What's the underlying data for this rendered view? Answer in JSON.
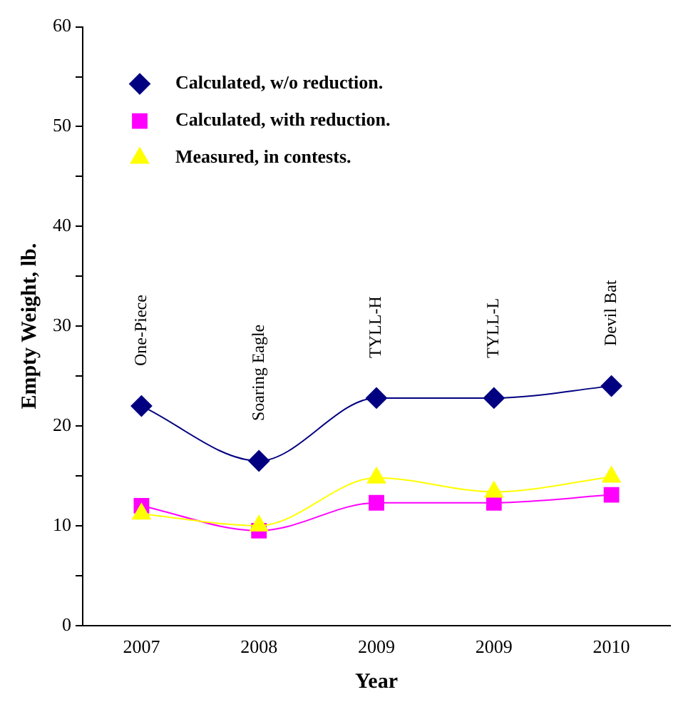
{
  "chart_data": {
    "type": "line",
    "xlabel": "Year",
    "ylabel": "Empty Weight, lb.",
    "categories": [
      "2007",
      "2008",
      "2009",
      "2009",
      "2010"
    ],
    "series": [
      {
        "name": "Calculated, w/o reduction.",
        "color": "#000080",
        "marker": "diamond",
        "values": [
          22,
          16.5,
          22.8,
          22.8,
          24
        ]
      },
      {
        "name": "Calculated, with reduction.",
        "color": "#ff00ff",
        "marker": "square",
        "values": [
          12,
          9.5,
          12.3,
          12.3,
          13.1
        ]
      },
      {
        "name": "Measured, in contests.",
        "color": "#ffff00",
        "marker": "triangle",
        "values": [
          11.2,
          10,
          14.8,
          13.4,
          14.9
        ]
      }
    ],
    "ylim": [
      0,
      60
    ],
    "yticks": [
      0,
      {
        "value": 5,
        "label": null
      },
      10,
      {
        "value": 15,
        "label": null
      },
      20,
      {
        "value": 25,
        "label": null
      },
      30,
      {
        "value": 35,
        "label": null
      },
      40,
      {
        "value": 45,
        "label": null
      },
      50,
      {
        "value": 55,
        "label": null
      },
      60
    ],
    "annotations": [
      "One-Piece",
      "Soaring Eagle",
      "TYLL-H",
      "TYLL-L",
      "Devil Bat"
    ],
    "legend": "top left",
    "grid": false
  }
}
